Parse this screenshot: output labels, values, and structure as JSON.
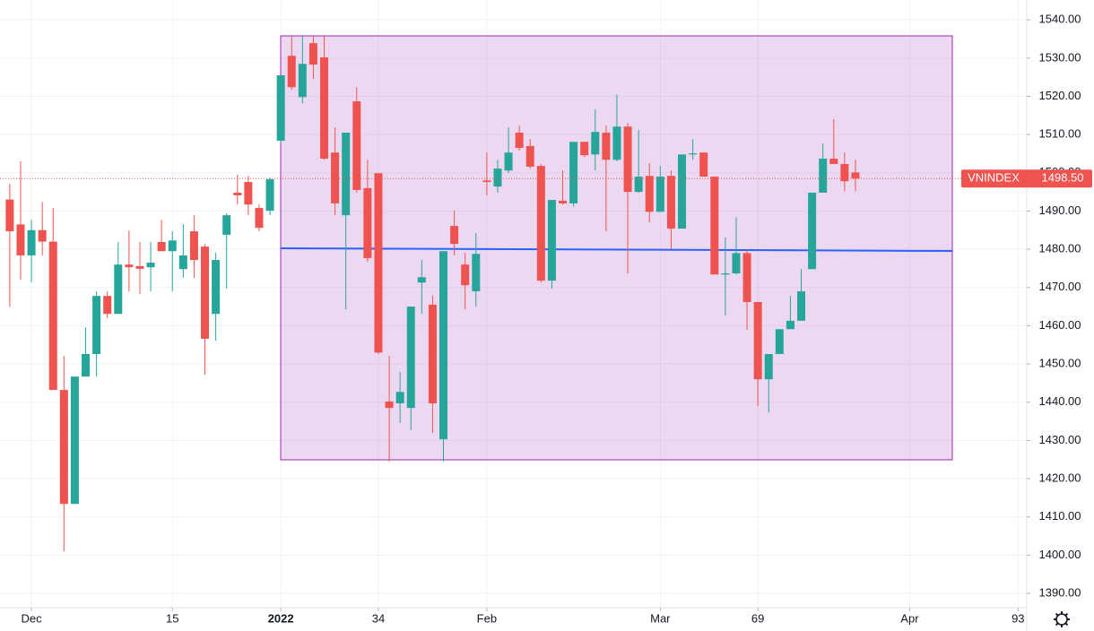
{
  "chart_data": {
    "type": "candlestick",
    "categories": [
      null,
      null,
      null,
      null,
      null,
      null,
      null,
      null,
      null,
      null,
      null,
      null,
      null,
      null,
      null,
      null,
      null,
      null,
      null,
      null,
      null,
      null,
      null,
      null,
      null,
      null,
      null,
      null,
      null,
      null,
      null,
      null,
      null,
      null,
      null,
      null,
      null,
      null,
      null,
      null,
      null,
      null,
      null,
      null,
      null,
      null,
      null,
      null,
      null,
      null,
      null,
      null,
      null,
      null,
      null,
      null,
      null,
      null,
      null,
      null,
      null,
      null,
      null,
      null,
      null,
      null,
      null,
      null,
      null,
      null,
      null,
      null,
      null,
      null,
      null,
      null,
      null,
      null,
      null
    ],
    "open": [
      1493,
      1486.5,
      1478.4,
      1485,
      1482,
      1443.2,
      1413.4,
      1446.7,
      1452.6,
      1467.8,
      1463.1,
      1476,
      1475.6,
      1475.3,
      1481.9,
      1479.5,
      1474.8,
      1484.7,
      1480.7,
      1463.1,
      1483.8,
      1494.8,
      1497.6,
      1490.8,
      1490.1,
      1508.4,
      1530.6,
      1519.8,
      1533.9,
      1530.2,
      1505.3,
      1488.9,
      1518.7,
      1496,
      1499.9,
      1440.2,
      1439.7,
      1438.5,
      1471.3,
      1465.5,
      1430.3,
      1486.1,
      1476,
      1469,
      1498,
      1496.4,
      1500.6,
      1510.5,
      1507,
      1501.8,
      1471.8,
      1492.7,
      1492,
      1508.1,
      1504.8,
      1510.5,
      1503.4,
      1512.1,
      1495,
      1499.2,
      1489.8,
      1499.2,
      1485.4,
      1504.8,
      1505.3,
      1499,
      1473.4,
      1473.7,
      1479,
      1466.2,
      1446,
      1452.6,
      1459.1,
      1461.3,
      1474.8,
      1494.8,
      1503.7,
      1502.3,
      1500.1
    ],
    "high": [
      1497.1,
      1503,
      1487.7,
      1492.4,
      1490.8,
      1452.1,
      1446.7,
      1459.6,
      1469,
      1469,
      1481.9,
      1484.9,
      1481.9,
      1481.9,
      1487.7,
      1484.7,
      1486.6,
      1488.9,
      1481.4,
      1479.1,
      1489.4,
      1499.5,
      1499.2,
      1491.7,
      1498.8,
      1525.5,
      1535.8,
      1535.8,
      1535.8,
      1535.8,
      1511.9,
      1510.5,
      1522.4,
      1503.4,
      1499.9,
      1452.1,
      1447.9,
      1465,
      1477.2,
      1467.8,
      1479.5,
      1490.1,
      1479.1,
      1484.2,
      1505.3,
      1503.4,
      1511.9,
      1512.3,
      1508.8,
      1502.3,
      1492.9,
      1500.6,
      1508.1,
      1508.1,
      1516.6,
      1512.3,
      1520.5,
      1513,
      1511.2,
      1502.5,
      1501.8,
      1500.6,
      1504.8,
      1508.8,
      1505.3,
      1499,
      1483.1,
      1488.4,
      1479.9,
      1466.2,
      1452.6,
      1459.1,
      1467.8,
      1474.8,
      1494.8,
      1507.7,
      1514,
      1505.3,
      1503.4
    ],
    "low": [
      1465,
      1472,
      1471.3,
      1478.4,
      1443.2,
      1401,
      1413.4,
      1446.7,
      1446.7,
      1462,
      1463.1,
      1469,
      1468.3,
      1469,
      1479.5,
      1469,
      1472.5,
      1472.5,
      1447.2,
      1456.1,
      1469.7,
      1491.7,
      1488.9,
      1484.7,
      1488.9,
      1507.7,
      1521.7,
      1518.2,
      1524.5,
      1503.4,
      1488.9,
      1464.3,
      1494.8,
      1476.7,
      1452.6,
      1424.5,
      1434.5,
      1432.7,
      1463.1,
      1432,
      1424.5,
      1478.4,
      1464.3,
      1465,
      1494.1,
      1494.8,
      1499.9,
      1505.8,
      1501.1,
      1471.3,
      1469.7,
      1491.7,
      1491.2,
      1504.1,
      1500.6,
      1484.7,
      1503,
      1473.7,
      1494.8,
      1487,
      1489.8,
      1480,
      1485.4,
      1503.4,
      1499,
      1473.4,
      1462.7,
      1473.4,
      1458.9,
      1439,
      1437.3,
      1452.6,
      1459.1,
      1461.3,
      1474.8,
      1494.8,
      1502.3,
      1495.2,
      1495.2
    ],
    "close": [
      1484.7,
      1478.4,
      1485,
      1482,
      1443.2,
      1413.4,
      1446.7,
      1452.6,
      1467.8,
      1463.1,
      1476,
      1475.3,
      1474.9,
      1476.5,
      1479.5,
      1482.3,
      1478.4,
      1477.2,
      1456.6,
      1477.2,
      1488.9,
      1494.1,
      1491.7,
      1485.6,
      1498.3,
      1525.5,
      1522.4,
      1528.5,
      1528.3,
      1503.7,
      1492,
      1510.5,
      1495.5,
      1477.7,
      1453,
      1438.5,
      1442.7,
      1465,
      1472.7,
      1439.7,
      1479.5,
      1481.4,
      1470.6,
      1478.8,
      1497.6,
      1501.1,
      1505.3,
      1506.5,
      1501.6,
      1471.8,
      1492.9,
      1492,
      1508.1,
      1504.6,
      1510.7,
      1503.4,
      1512.1,
      1495,
      1499,
      1489.8,
      1499,
      1485.4,
      1504.8,
      1505.1,
      1499,
      1473.4,
      1473.7,
      1479,
      1466.2,
      1446,
      1452.6,
      1459.1,
      1461.3,
      1469,
      1494.8,
      1503.7,
      1502.3,
      1497.8,
      1498.5
    ],
    "up_color": "#26a69a",
    "down_color": "#ef5350",
    "last_price": {
      "name": "VNINDEX",
      "value": 1498.5,
      "label": "1498.50"
    },
    "xlim": [
      -0.9,
      93.8
    ],
    "xticks": [
      {
        "value": 2,
        "label": "Dec"
      },
      15,
      {
        "value": 25,
        "label": "2022"
      },
      34,
      {
        "value": 44,
        "label": "Feb"
      },
      {
        "value": 60,
        "label": "Mar"
      },
      69,
      {
        "value": 83,
        "label": "Apr"
      },
      93
    ],
    "ylim": [
      1386.25,
      1545.2
    ],
    "yticks": [
      {
        "value": 1390,
        "label": "1390.00"
      },
      {
        "value": 1400,
        "label": "1400.00"
      },
      {
        "value": 1410,
        "label": "1410.00"
      },
      {
        "value": 1420,
        "label": "1420.00"
      },
      {
        "value": 1430,
        "label": "1430.00"
      },
      {
        "value": 1440,
        "label": "1440.00"
      },
      {
        "value": 1450,
        "label": "1450.00"
      },
      {
        "value": 1460,
        "label": "1460.00"
      },
      {
        "value": 1470,
        "label": "1470.00"
      },
      {
        "value": 1480,
        "label": "1480.00"
      },
      {
        "value": 1490,
        "label": "1490.00"
      },
      {
        "value": 1500,
        "label": "1500.00"
      },
      {
        "value": 1510,
        "label": "1510.00"
      },
      {
        "value": 1520,
        "label": "1520.00"
      },
      {
        "value": 1530,
        "label": "1530.00"
      },
      {
        "value": 1540,
        "label": "1540.00"
      }
    ],
    "grid": true
  }
}
